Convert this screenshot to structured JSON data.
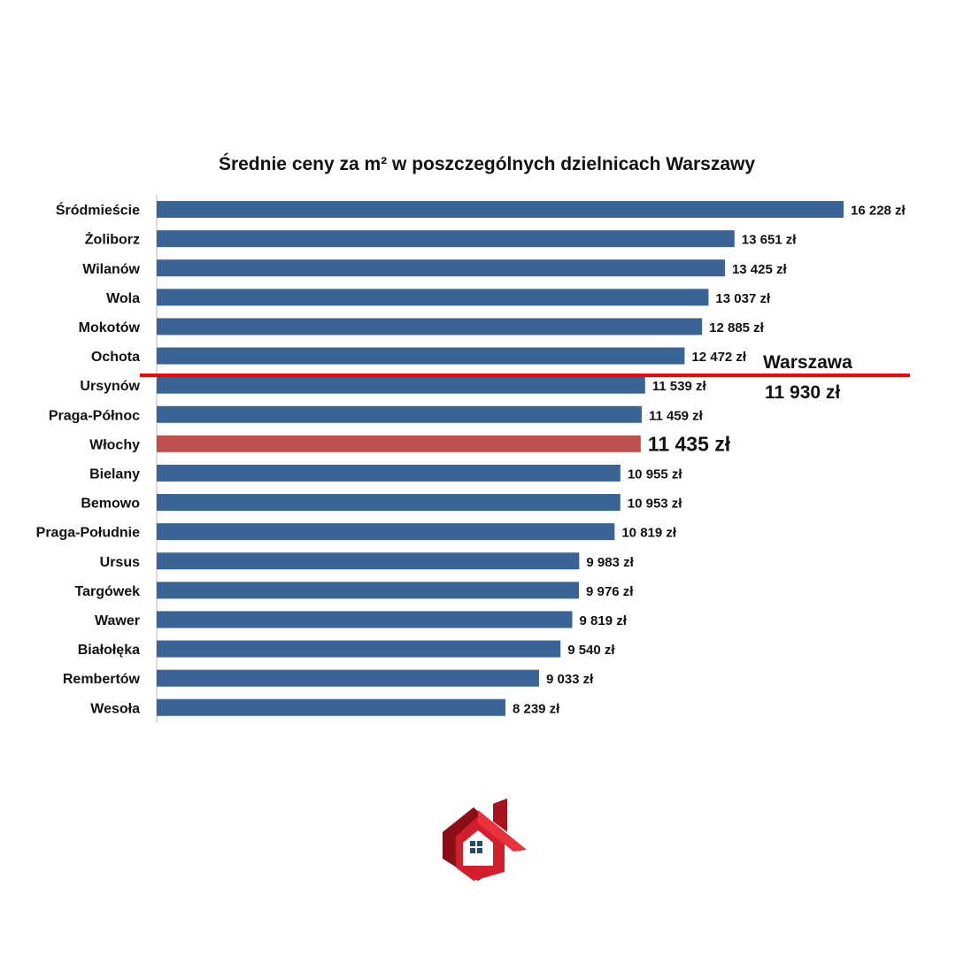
{
  "chart_data": {
    "type": "bar",
    "orientation": "horizontal",
    "title": "Średnie ceny za m² w poszczególnych dzielnicach Warszawy",
    "xlabel": "",
    "ylabel": "",
    "currency_suffix": "zł",
    "xlim": [
      0,
      17000
    ],
    "grid": false,
    "categories": [
      "Śródmieście",
      "Żoliborz",
      "Wilanów",
      "Wola",
      "Mokotów",
      "Ochota",
      "Ursynów",
      "Praga-Północ",
      "Włochy",
      "Bielany",
      "Bemowo",
      "Praga-Południe",
      "Ursus",
      "Targówek",
      "Wawer",
      "Białołęka",
      "Rembertów",
      "Wesoła"
    ],
    "values": [
      16228,
      13651,
      13425,
      13037,
      12885,
      12472,
      11539,
      11459,
      11435,
      10955,
      10953,
      10819,
      9983,
      9976,
      9819,
      9540,
      9033,
      8239
    ],
    "value_labels": [
      "16 228 zł",
      "13 651 zł",
      "13 425 zł",
      "13 037 zł",
      "12 885 zł",
      "12 472 zł",
      "11 539 zł",
      "11 459 zł",
      "11 435 zł",
      "10 955 zł",
      "10 953 zł",
      "10 819 zł",
      "9 983 zł",
      "9 976 zł",
      "9 819 zł",
      "9 540 zł",
      "9 033 zł",
      "8 239 zł"
    ],
    "highlight_category": "Włochy",
    "reference_line": {
      "name": "Warszawa",
      "value": 11930,
      "label": "11 930 zł"
    },
    "colors": {
      "bar": "#3a6396",
      "highlight": "#c0504d",
      "reference": "#ff0000"
    }
  },
  "logo": {
    "icon": "house-logo-icon",
    "colors": {
      "primary": "#d21f2b",
      "dark": "#8b0d16",
      "window": "#1f4e6b"
    }
  }
}
